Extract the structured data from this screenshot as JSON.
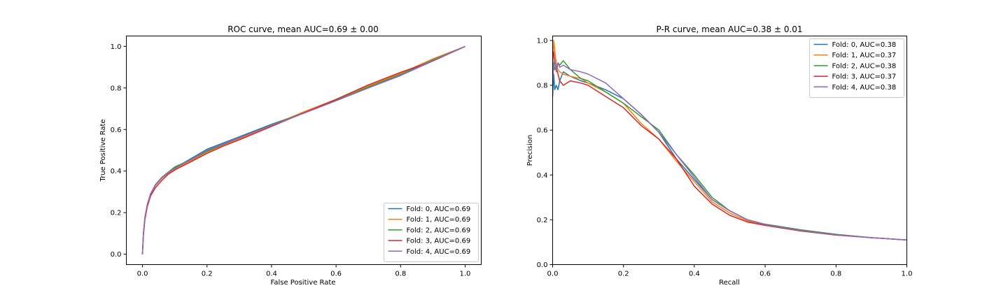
{
  "chart_data": [
    {
      "type": "line",
      "title": "ROC curve, mean AUC=0.69 ± 0.00",
      "xlabel": "False Positive Rate",
      "ylabel": "True Positive Rate",
      "xlim": [
        -0.05,
        1.05
      ],
      "ylim": [
        -0.05,
        1.05
      ],
      "xticks": [
        0.0,
        0.2,
        0.4,
        0.6,
        0.8,
        1.0
      ],
      "yticks": [
        0.0,
        0.2,
        0.4,
        0.6,
        0.8,
        1.0
      ],
      "tick_labels": [
        "0.0",
        "0.2",
        "0.4",
        "0.6",
        "0.8",
        "1.0"
      ],
      "grid": false,
      "legend_position": "lower-right",
      "series": [
        {
          "name": "Fold: 0, AUC=0.69",
          "color": "#1f77b4",
          "x": [
            0.0,
            0.003,
            0.008,
            0.015,
            0.025,
            0.04,
            0.06,
            0.08,
            0.1,
            0.15,
            0.2,
            0.25,
            0.3,
            0.4,
            0.5,
            0.6,
            0.7,
            0.8,
            0.9,
            1.0
          ],
          "y": [
            0.0,
            0.1,
            0.18,
            0.24,
            0.29,
            0.335,
            0.37,
            0.395,
            0.415,
            0.46,
            0.505,
            0.535,
            0.565,
            0.625,
            0.68,
            0.74,
            0.8,
            0.86,
            0.93,
            1.0
          ]
        },
        {
          "name": "Fold: 1, AUC=0.69",
          "color": "#ff7f0e",
          "x": [
            0.0,
            0.003,
            0.008,
            0.015,
            0.025,
            0.04,
            0.06,
            0.08,
            0.1,
            0.15,
            0.2,
            0.25,
            0.3,
            0.4,
            0.5,
            0.6,
            0.7,
            0.8,
            0.9,
            1.0
          ],
          "y": [
            0.0,
            0.1,
            0.18,
            0.24,
            0.29,
            0.33,
            0.365,
            0.39,
            0.41,
            0.45,
            0.49,
            0.525,
            0.555,
            0.62,
            0.685,
            0.745,
            0.81,
            0.87,
            0.94,
            1.0
          ]
        },
        {
          "name": "Fold: 2, AUC=0.69",
          "color": "#2ca02c",
          "x": [
            0.0,
            0.003,
            0.008,
            0.015,
            0.025,
            0.04,
            0.06,
            0.08,
            0.1,
            0.15,
            0.2,
            0.25,
            0.3,
            0.4,
            0.5,
            0.6,
            0.7,
            0.8,
            0.9,
            1.0
          ],
          "y": [
            0.0,
            0.1,
            0.18,
            0.24,
            0.29,
            0.333,
            0.368,
            0.395,
            0.42,
            0.455,
            0.495,
            0.528,
            0.56,
            0.622,
            0.68,
            0.74,
            0.805,
            0.865,
            0.935,
            1.0
          ]
        },
        {
          "name": "Fold: 3, AUC=0.69",
          "color": "#d62728",
          "x": [
            0.0,
            0.003,
            0.008,
            0.015,
            0.025,
            0.04,
            0.06,
            0.08,
            0.1,
            0.15,
            0.2,
            0.25,
            0.3,
            0.4,
            0.5,
            0.6,
            0.7,
            0.8,
            0.9,
            1.0
          ],
          "y": [
            0.0,
            0.09,
            0.17,
            0.23,
            0.28,
            0.32,
            0.355,
            0.385,
            0.405,
            0.445,
            0.485,
            0.52,
            0.55,
            0.615,
            0.68,
            0.745,
            0.815,
            0.875,
            0.93,
            1.0
          ]
        },
        {
          "name": "Fold: 4, AUC=0.69",
          "color": "#9467bd",
          "x": [
            0.0,
            0.003,
            0.008,
            0.015,
            0.025,
            0.04,
            0.06,
            0.08,
            0.1,
            0.15,
            0.2,
            0.25,
            0.3,
            0.4,
            0.5,
            0.6,
            0.7,
            0.8,
            0.9,
            1.0
          ],
          "y": [
            0.0,
            0.1,
            0.18,
            0.24,
            0.29,
            0.333,
            0.367,
            0.393,
            0.413,
            0.455,
            0.5,
            0.53,
            0.56,
            0.62,
            0.678,
            0.738,
            0.8,
            0.862,
            0.932,
            1.0
          ]
        }
      ]
    },
    {
      "type": "line",
      "title": "P-R curve, mean AUC=0.38 ± 0.01",
      "xlabel": "Recall",
      "ylabel": "Precision",
      "xlim": [
        0.0,
        1.0
      ],
      "ylim": [
        0.0,
        1.02
      ],
      "xticks": [
        0.0,
        0.2,
        0.4,
        0.6,
        0.8,
        1.0
      ],
      "yticks": [
        0.0,
        0.2,
        0.4,
        0.6,
        0.8,
        1.0
      ],
      "tick_labels": [
        "0.0",
        "0.2",
        "0.4",
        "0.6",
        "0.8",
        "1.0"
      ],
      "grid": false,
      "legend_position": "upper-right",
      "series": [
        {
          "name": "Fold: 0, AUC=0.38",
          "color": "#1f77b4",
          "x": [
            0.0,
            0.003,
            0.006,
            0.01,
            0.015,
            0.02,
            0.03,
            0.05,
            0.08,
            0.1,
            0.15,
            0.2,
            0.25,
            0.3,
            0.35,
            0.4,
            0.45,
            0.5,
            0.55,
            0.6,
            0.7,
            0.8,
            0.9,
            1.0
          ],
          "y": [
            0.75,
            0.85,
            0.78,
            0.8,
            0.78,
            0.82,
            0.86,
            0.84,
            0.82,
            0.81,
            0.78,
            0.74,
            0.67,
            0.59,
            0.47,
            0.38,
            0.29,
            0.24,
            0.2,
            0.18,
            0.155,
            0.135,
            0.12,
            0.11
          ]
        },
        {
          "name": "Fold: 1, AUC=0.37",
          "color": "#ff7f0e",
          "x": [
            0.0,
            0.003,
            0.006,
            0.01,
            0.015,
            0.02,
            0.03,
            0.05,
            0.08,
            0.1,
            0.15,
            0.2,
            0.25,
            0.3,
            0.35,
            0.4,
            0.45,
            0.5,
            0.55,
            0.6,
            0.7,
            0.8,
            0.9,
            1.0
          ],
          "y": [
            0.85,
            1.0,
            0.96,
            0.9,
            0.87,
            0.86,
            0.85,
            0.84,
            0.83,
            0.81,
            0.77,
            0.72,
            0.63,
            0.56,
            0.46,
            0.37,
            0.28,
            0.23,
            0.195,
            0.175,
            0.15,
            0.132,
            0.12,
            0.11
          ]
        },
        {
          "name": "Fold: 2, AUC=0.38",
          "color": "#2ca02c",
          "x": [
            0.0,
            0.003,
            0.006,
            0.01,
            0.015,
            0.02,
            0.03,
            0.05,
            0.08,
            0.1,
            0.15,
            0.2,
            0.25,
            0.3,
            0.35,
            0.4,
            0.45,
            0.5,
            0.55,
            0.6,
            0.7,
            0.8,
            0.9,
            1.0
          ],
          "y": [
            0.88,
            0.9,
            0.87,
            0.88,
            0.9,
            0.89,
            0.91,
            0.87,
            0.83,
            0.82,
            0.77,
            0.72,
            0.66,
            0.6,
            0.49,
            0.4,
            0.3,
            0.24,
            0.2,
            0.18,
            0.155,
            0.135,
            0.12,
            0.11
          ]
        },
        {
          "name": "Fold: 3, AUC=0.37",
          "color": "#d62728",
          "x": [
            0.0,
            0.003,
            0.006,
            0.01,
            0.015,
            0.02,
            0.03,
            0.05,
            0.08,
            0.1,
            0.15,
            0.2,
            0.25,
            0.3,
            0.35,
            0.4,
            0.45,
            0.5,
            0.55,
            0.6,
            0.7,
            0.8,
            0.9,
            1.0
          ],
          "y": [
            0.92,
            0.95,
            0.9,
            0.88,
            0.85,
            0.82,
            0.8,
            0.82,
            0.81,
            0.8,
            0.75,
            0.7,
            0.62,
            0.56,
            0.47,
            0.35,
            0.27,
            0.22,
            0.19,
            0.175,
            0.15,
            0.132,
            0.12,
            0.11
          ]
        },
        {
          "name": "Fold: 4, AUC=0.38",
          "color": "#9467bd",
          "x": [
            0.0,
            0.003,
            0.006,
            0.01,
            0.015,
            0.02,
            0.03,
            0.05,
            0.08,
            0.1,
            0.15,
            0.2,
            0.25,
            0.3,
            0.35,
            0.4,
            0.45,
            0.5,
            0.55,
            0.6,
            0.7,
            0.8,
            0.9,
            1.0
          ],
          "y": [
            0.82,
            0.88,
            0.92,
            0.86,
            0.9,
            0.88,
            0.89,
            0.87,
            0.86,
            0.85,
            0.81,
            0.74,
            0.67,
            0.59,
            0.49,
            0.39,
            0.29,
            0.24,
            0.2,
            0.178,
            0.152,
            0.133,
            0.12,
            0.11
          ]
        }
      ]
    }
  ]
}
